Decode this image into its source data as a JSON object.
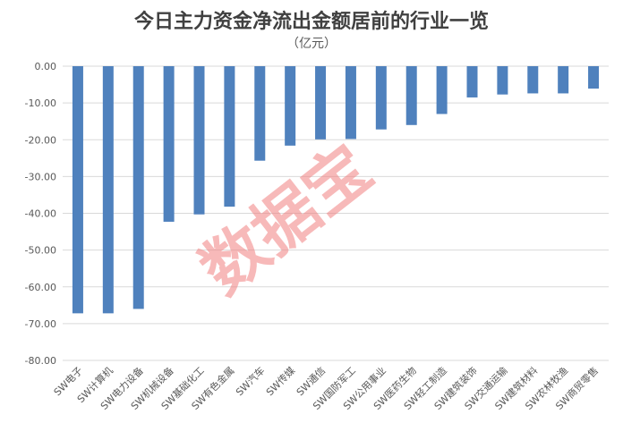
{
  "chart_data": {
    "type": "bar",
    "title": "今日主力资金净流出金额居前的行业一览",
    "subtitle": "（亿元）",
    "categories": [
      "SW电子",
      "SW计算机",
      "SW电力设备",
      "SW机械设备",
      "SW基础化工",
      "SW有色金属",
      "SW汽车",
      "SW传媒",
      "SW通信",
      "SW国防军工",
      "SW公用事业",
      "SW医药生物",
      "SW轻工制造",
      "SW建筑装饰",
      "SW交通运输",
      "SW建筑材料",
      "SW农林牧渔",
      "SW商贸零售"
    ],
    "values": [
      -67.2,
      -67.2,
      -66.0,
      -42.3,
      -40.3,
      -38.2,
      -25.7,
      -21.6,
      -19.9,
      -19.8,
      -17.2,
      -16.0,
      -13.0,
      -8.5,
      -7.7,
      -7.4,
      -7.4,
      -6.1
    ],
    "ylim": [
      -80,
      0
    ],
    "yticks": [
      "0.00",
      "-10.00",
      "-20.00",
      "-30.00",
      "-40.00",
      "-50.00",
      "-60.00",
      "-70.00",
      "-80.00"
    ],
    "grid": true,
    "bar_color": "#4f81bd",
    "watermark": "数据宝"
  }
}
